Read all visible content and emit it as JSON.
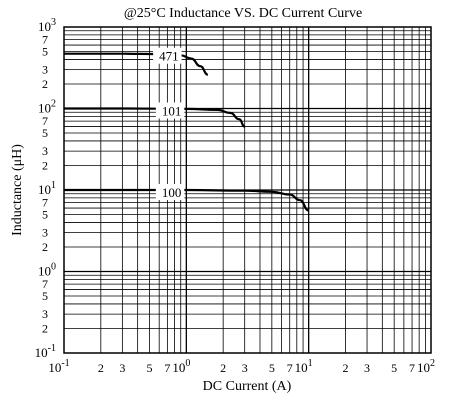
{
  "chart_data": {
    "type": "line",
    "title": "@25°C Inductance VS. DC Current Curve",
    "xlabel": "DC Current (A)",
    "ylabel": "Inductance (μH)",
    "x_scale": "log",
    "y_scale": "log",
    "xlim": [
      0.1,
      100
    ],
    "ylim": [
      0.1,
      1000
    ],
    "grid": true,
    "x_ticks": [
      {
        "value": 0.1,
        "base": "10",
        "exp": "-1"
      },
      {
        "value": 0.2,
        "label": "2"
      },
      {
        "value": 0.3,
        "label": "3"
      },
      {
        "value": 0.5,
        "label": "5"
      },
      {
        "value": 0.7,
        "label": "7"
      },
      {
        "value": 1,
        "base": "10",
        "exp": "0"
      },
      {
        "value": 2,
        "label": "2"
      },
      {
        "value": 3,
        "label": "3"
      },
      {
        "value": 5,
        "label": "5"
      },
      {
        "value": 7,
        "label": "7"
      },
      {
        "value": 10,
        "base": "10",
        "exp": "1"
      },
      {
        "value": 20,
        "label": "2"
      },
      {
        "value": 30,
        "label": "3"
      },
      {
        "value": 50,
        "label": "5"
      },
      {
        "value": 70,
        "label": "7"
      },
      {
        "value": 100,
        "base": "10",
        "exp": "2"
      }
    ],
    "y_ticks": [
      {
        "value": 0.1,
        "base": "10",
        "exp": "-1"
      },
      {
        "value": 0.2,
        "label": "2"
      },
      {
        "value": 0.3,
        "label": "3"
      },
      {
        "value": 0.5,
        "label": "5"
      },
      {
        "value": 0.7,
        "label": "7"
      },
      {
        "value": 1,
        "base": "10",
        "exp": "0"
      },
      {
        "value": 2,
        "label": "2"
      },
      {
        "value": 3,
        "label": "3"
      },
      {
        "value": 5,
        "label": "5"
      },
      {
        "value": 7,
        "label": "7"
      },
      {
        "value": 10,
        "base": "10",
        "exp": "1"
      },
      {
        "value": 20,
        "label": "2"
      },
      {
        "value": 30,
        "label": "3"
      },
      {
        "value": 50,
        "label": "5"
      },
      {
        "value": 70,
        "label": "7"
      },
      {
        "value": 100,
        "base": "10",
        "exp": "2"
      },
      {
        "value": 200,
        "label": "2"
      },
      {
        "value": 300,
        "label": "3"
      },
      {
        "value": 500,
        "label": "5"
      },
      {
        "value": 700,
        "label": "7"
      },
      {
        "value": 1000,
        "base": "10",
        "exp": "3"
      }
    ],
    "series": [
      {
        "name": "471",
        "label_at": [
          0.95,
          470
        ],
        "x": [
          0.1,
          0.3,
          0.6,
          0.9,
          1.1,
          1.3,
          1.5
        ],
        "y": [
          470,
          470,
          465,
          450,
          410,
          330,
          260
        ]
      },
      {
        "name": "101",
        "label_at": [
          1.0,
          100
        ],
        "x": [
          0.1,
          0.3,
          1.0,
          1.8,
          2.3,
          2.7,
          3.0
        ],
        "y": [
          100,
          100,
          99,
          96,
          88,
          74,
          60
        ]
      },
      {
        "name": "100",
        "label_at": [
          1.0,
          10
        ],
        "x": [
          0.1,
          0.3,
          1.0,
          3.0,
          5.0,
          7.0,
          8.5,
          10.0
        ],
        "y": [
          10,
          10,
          10,
          9.8,
          9.5,
          8.8,
          7.5,
          5.6
        ]
      }
    ]
  }
}
